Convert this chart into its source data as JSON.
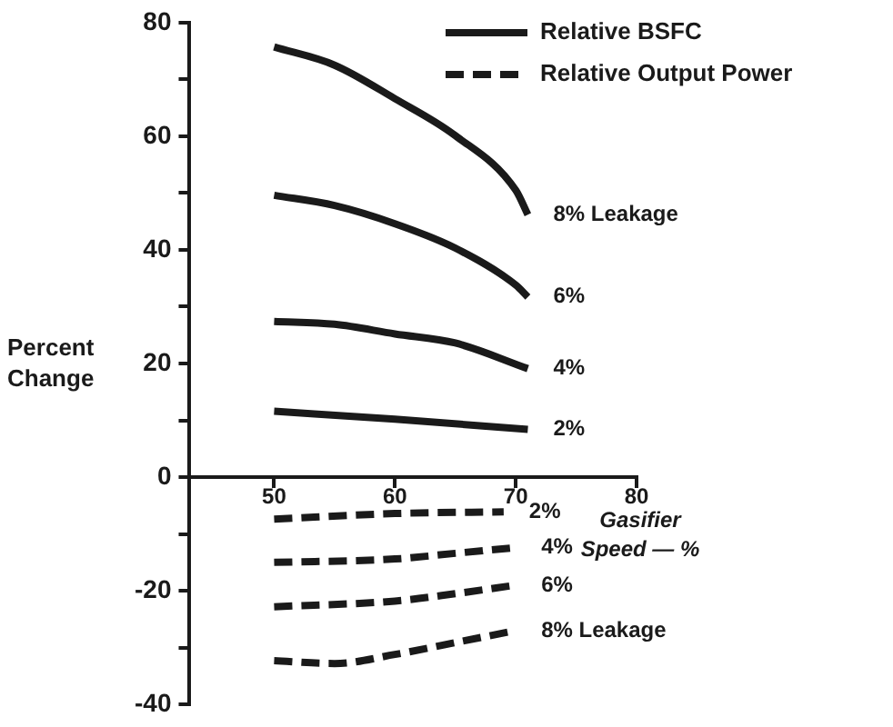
{
  "chart_data": {
    "type": "line",
    "xlabel": "Gasifier Speed — %",
    "ylabel": "Percent Change",
    "xlim": [
      43,
      80
    ],
    "xticks": [
      50,
      60,
      70,
      80
    ],
    "ylim": [
      -40,
      80
    ],
    "yticks": [
      -40,
      {
        "value": -30,
        "label": null
      },
      -20,
      {
        "value": -10,
        "label": null
      },
      0,
      {
        "value": 10,
        "label": null
      },
      20,
      {
        "value": 30,
        "label": null
      },
      40,
      {
        "value": 50,
        "label": null
      },
      60,
      {
        "value": 70,
        "label": null
      },
      80
    ],
    "grid": false,
    "legend": "top right",
    "marker": "none",
    "series": [
      {
        "name": "Relative BSFC",
        "color": "#1a1a1a",
        "line_style": "solid",
        "x": [
          50,
          55,
          60,
          65,
          70,
          71
        ],
        "values": [
          75.7,
          72.5,
          66.6,
          60.1,
          50.5,
          46.2
        ]
      },
      {
        "color": "#1a1a1a",
        "line_style": "solid",
        "x": [
          50,
          55,
          60,
          65,
          70,
          71
        ],
        "values": [
          49.6,
          47.8,
          44.6,
          40.3,
          33.8,
          31.7
        ]
      },
      {
        "color": "#1a1a1a",
        "line_style": "solid",
        "x": [
          50,
          55,
          60,
          65,
          71
        ],
        "values": [
          27.4,
          26.9,
          25.2,
          23.6,
          19.1
        ]
      },
      {
        "color": "#1a1a1a",
        "line_style": "solid",
        "x": [
          50,
          60,
          71
        ],
        "values": [
          11.6,
          10.2,
          8.4
        ]
      },
      {
        "name": "Relative Output Power",
        "color": "#1a1a1a",
        "line_style": "dashed",
        "x": [
          50,
          60,
          69
        ],
        "values": [
          -7.4,
          -6.4,
          -6.1
        ]
      },
      {
        "color": "#1a1a1a",
        "line_style": "dashed",
        "x": [
          50,
          60,
          65,
          70
        ],
        "values": [
          -15,
          -14.4,
          -13.4,
          -12.4
        ]
      },
      {
        "color": "#1a1a1a",
        "line_style": "dashed",
        "x": [
          50,
          60,
          65,
          70
        ],
        "values": [
          -22.8,
          -21.8,
          -20.5,
          -19
        ]
      },
      {
        "color": "#1a1a1a",
        "line_style": "dashed",
        "x": [
          50,
          55,
          60,
          65,
          70
        ],
        "values": [
          -32.3,
          -32.8,
          -31.2,
          -29.1,
          -27
        ]
      }
    ],
    "annotations": [
      {
        "text": "8% Leakage",
        "x": 71,
        "y": 46.2
      },
      {
        "text": "6%",
        "x": 71,
        "y": 31.7
      },
      {
        "text": "4%",
        "x": 71,
        "y": 19.1
      },
      {
        "text": "2%",
        "x": 71,
        "y": 8.4
      },
      {
        "text": "2%",
        "x": 69,
        "y": -6.1
      },
      {
        "text": "4%",
        "x": 70,
        "y": -12.4
      },
      {
        "text": "6%",
        "x": 70,
        "y": -19
      },
      {
        "text": "8% Leakage",
        "x": 70,
        "y": -27
      }
    ]
  }
}
